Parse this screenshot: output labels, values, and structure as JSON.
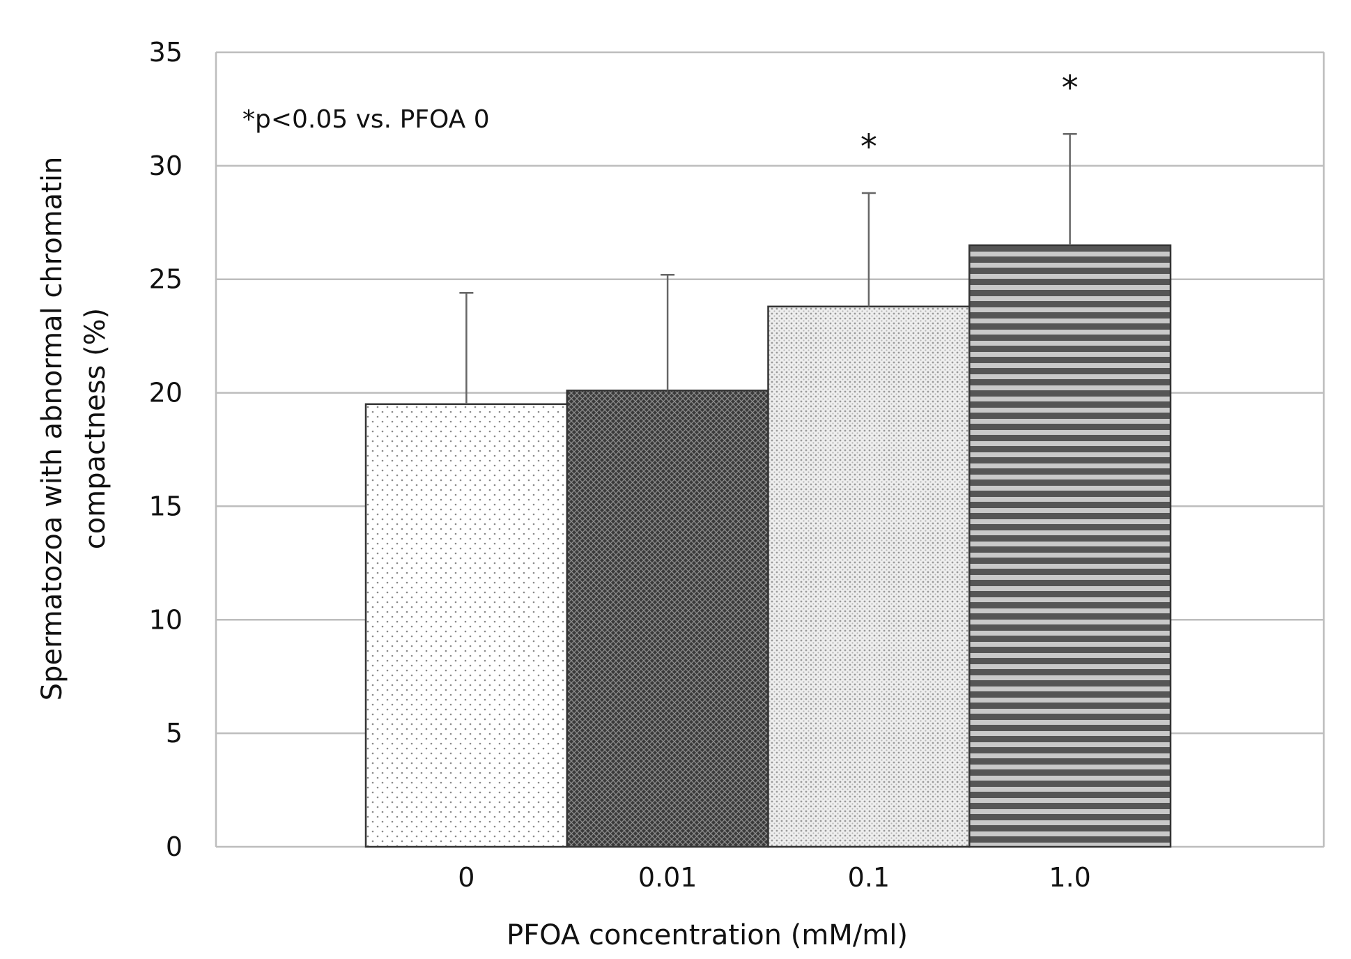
{
  "chart_data": {
    "type": "bar",
    "title": "",
    "xlabel": "PFOA concentration (mM/ml)",
    "ylabel_lines": [
      "Spermatozoa with abnormal chromatin",
      "compactness (%)"
    ],
    "categories": [
      "0",
      "0.01",
      "0.1",
      "1.0"
    ],
    "values": [
      19.5,
      20.1,
      23.8,
      26.5
    ],
    "error_upper": [
      24.4,
      25.2,
      28.8,
      31.4
    ],
    "significance": [
      "",
      "",
      "*",
      "*"
    ],
    "ylim": [
      0,
      35
    ],
    "yticks": [
      0,
      5,
      10,
      15,
      20,
      25,
      30,
      35
    ],
    "grid": true,
    "annotation": "*p<0.05 vs. PFOA 0",
    "bar_patterns": [
      "sparse-dots",
      "dark-crosshatch",
      "light-dots",
      "horizontal-stripes"
    ],
    "colors": {
      "bar_outline": "#333333",
      "grid": "#bdbdbd",
      "dark_fill": "#404040",
      "stripe_dark": "#5a5a5a",
      "stripe_light": "#c8c8c8"
    }
  }
}
